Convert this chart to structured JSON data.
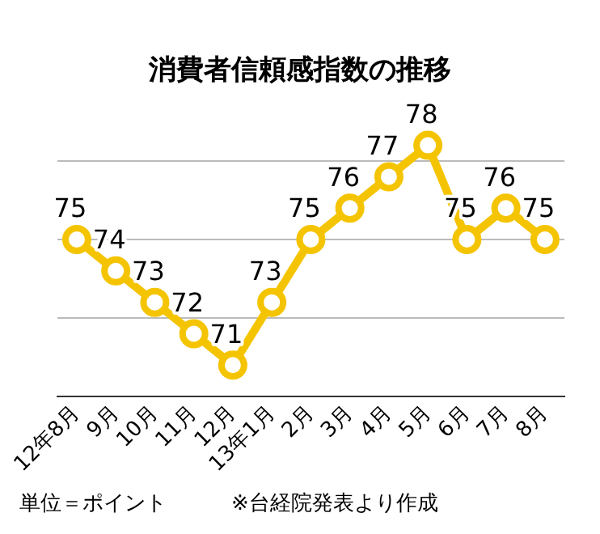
{
  "chart_data": {
    "type": "line",
    "title": "消費者信頼感指数の推移",
    "categories": [
      "12年8月",
      "9月",
      "10月",
      "11月",
      "12月",
      "13年1月",
      "2月",
      "3月",
      "4月",
      "5月",
      "6月",
      "7月",
      "8月"
    ],
    "series": [
      {
        "color": "#f5c400",
        "values": [
          75,
          74,
          73,
          72,
          71,
          73,
          75,
          76,
          77,
          78,
          75,
          76,
          75
        ]
      }
    ],
    "yticks": [
      {
        "value": 72.5,
        "label": null
      },
      {
        "value": 75,
        "label": null
      },
      {
        "value": 77.5,
        "label": null
      }
    ],
    "tick_labels": "x",
    "grid": "y",
    "legend": false,
    "marker": "circle",
    "line_style": "solid",
    "data_labels": true,
    "annotations": [
      "単位＝ポイント",
      "※台経院発表より作成"
    ]
  }
}
